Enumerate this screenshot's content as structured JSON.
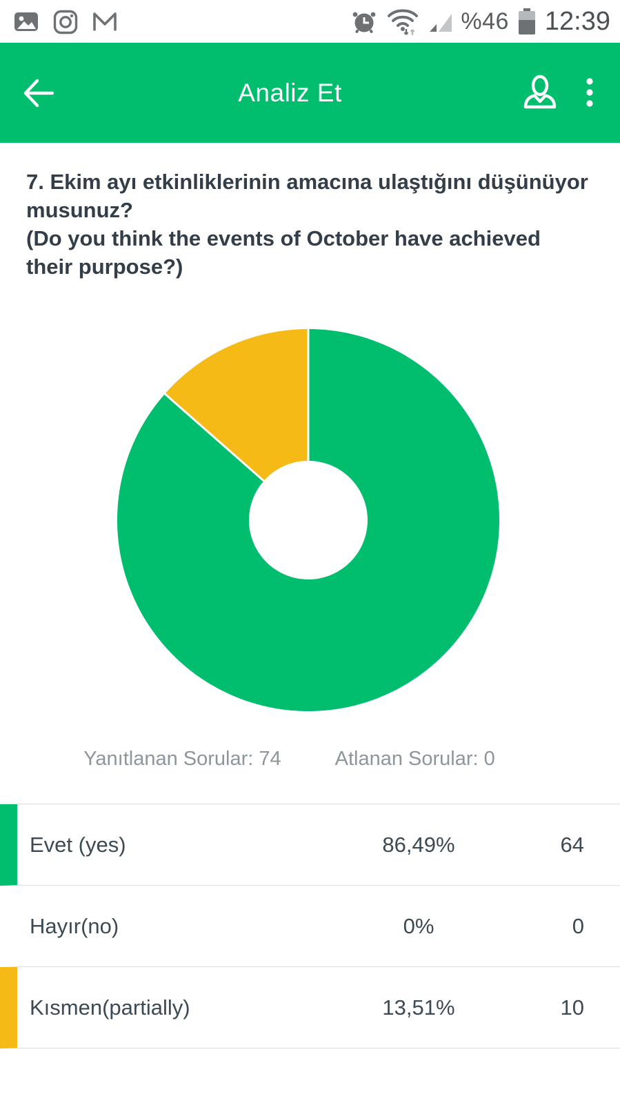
{
  "status_bar": {
    "left_icons": [
      "gallery-icon",
      "instagram-icon",
      "gmail-icon"
    ],
    "right_icons": [
      "alarm-icon",
      "wifi-icon",
      "signal-icon",
      "battery-icon"
    ],
    "battery_percent_label": "%46",
    "time": "12:39"
  },
  "header": {
    "title": "Analiz Et",
    "accent_color": "#00be6e",
    "icons": [
      "back-arrow-icon",
      "person-icon",
      "overflow-menu-icon"
    ]
  },
  "question": {
    "text_tr": "7. Ekim ayı etkinliklerinin amacına ulaştığını düşünüyor musunuz?",
    "text_en": "(Do you think the events of October have achieved their purpose?)"
  },
  "chart_data": {
    "type": "pie",
    "style": "donut",
    "title": "",
    "legend_position": "table-below",
    "start_angle_deg": 0,
    "direction": "clockwise",
    "inner_radius_ratio": 0.31,
    "slice_gap_color": "#ffffff",
    "slices": [
      {
        "label": "Evet (yes)",
        "percent": 86.49,
        "count": 64,
        "color": "#00be6e"
      },
      {
        "label": "Hayır(no)",
        "percent": 0,
        "count": 0,
        "color": null
      },
      {
        "label": "Kısmen(partially)",
        "percent": 13.51,
        "count": 10,
        "color": "#f5ba16"
      }
    ]
  },
  "stats": {
    "answered_label": "Yanıtlanan Sorular:",
    "answered_value": "74",
    "skipped_label": "Atlanan Sorular:",
    "skipped_value": "0"
  },
  "table": {
    "rows": [
      {
        "label": "Evet (yes)",
        "percent": "86,49%",
        "count": "64",
        "accent": "#00be6e"
      },
      {
        "label": "Hayır(no)",
        "percent": "0%",
        "count": "0",
        "accent": null
      },
      {
        "label": "Kısmen(partially)",
        "percent": "13,51%",
        "count": "10",
        "accent": "#f5ba16"
      }
    ]
  }
}
